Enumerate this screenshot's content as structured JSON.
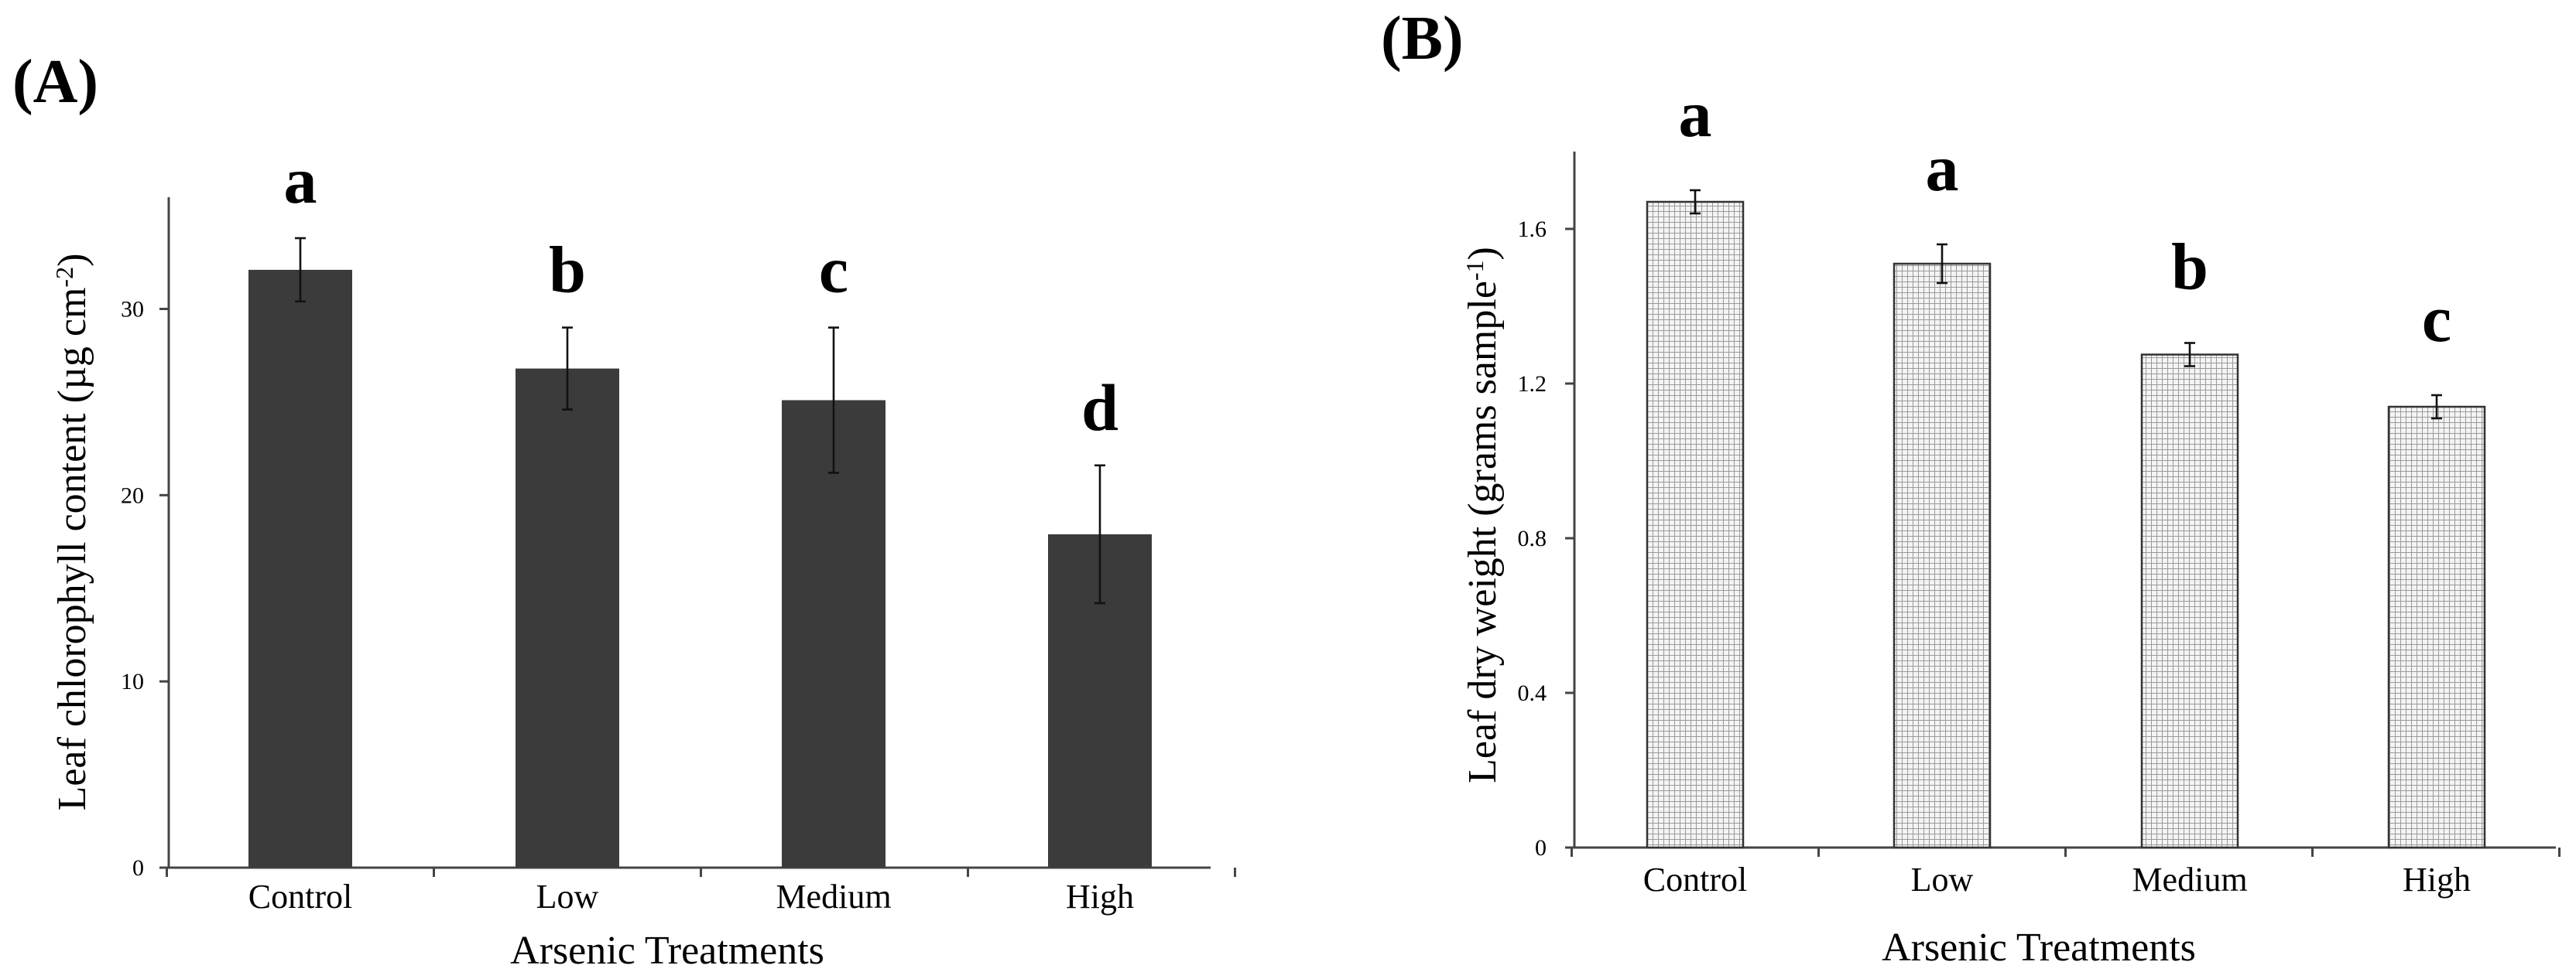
{
  "chart_data": [
    {
      "type": "bar",
      "panel_label": "(A)",
      "categories": [
        "Control",
        "Low",
        "Medium",
        "High"
      ],
      "values": [
        32.1,
        26.8,
        25.1,
        17.9
      ],
      "errors": [
        1.7,
        2.2,
        3.9,
        3.7
      ],
      "significance": [
        "a",
        "b",
        "c",
        "d"
      ],
      "xlabel": "Arsenic Treatments",
      "ylabel": "Leaf chlorophyll content (µg cm",
      "ylabel_sup": "-2",
      "ylabel_end": ")",
      "ylim": [
        0,
        36
      ],
      "yticks": [
        "0",
        "10",
        "20",
        "30"
      ],
      "bar_color": "#3b3b3b",
      "pattern": "solid"
    },
    {
      "type": "bar",
      "panel_label": "(B)",
      "categories": [
        "Control",
        "Low",
        "Medium",
        "High"
      ],
      "values": [
        1.67,
        1.51,
        1.275,
        1.14
      ],
      "errors": [
        0.03,
        0.05,
        0.03,
        0.03
      ],
      "significance": [
        "a",
        "a",
        "b",
        "c"
      ],
      "xlabel": "Arsenic Treatments",
      "ylabel": "Leaf dry weight (grams sample",
      "ylabel_sup": "-1",
      "ylabel_end": ")",
      "ylim": [
        0,
        1.8
      ],
      "yticks": [
        "0",
        "0.4",
        "0.8",
        "1.2",
        "1.6"
      ],
      "bar_color": "#d9d9d9",
      "pattern": "grid"
    }
  ]
}
